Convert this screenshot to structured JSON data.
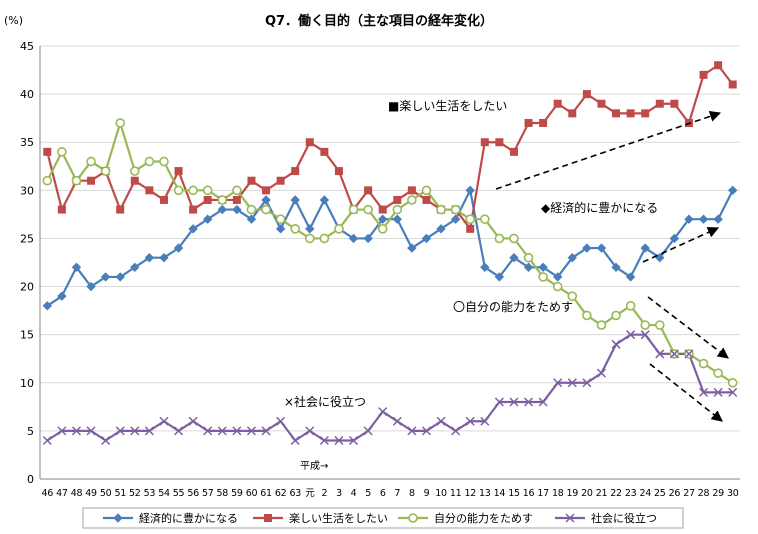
{
  "chart_data": {
    "type": "line",
    "title": "Q7．働く目的（主な項目の経年変化）",
    "ylabel": "(%)",
    "ylim": [
      0,
      45
    ],
    "yticks": [
      0,
      5,
      10,
      15,
      20,
      25,
      30,
      35,
      40,
      45
    ],
    "grid": true,
    "legend_position": "bottom",
    "categories": [
      "46",
      "47",
      "48",
      "49",
      "50",
      "51",
      "52",
      "53",
      "54",
      "55",
      "56",
      "57",
      "58",
      "59",
      "60",
      "61",
      "62",
      "63",
      "元",
      "2",
      "3",
      "4",
      "5",
      "6",
      "7",
      "8",
      "9",
      "10",
      "11",
      "12",
      "13",
      "14",
      "15",
      "16",
      "17",
      "18",
      "19",
      "20",
      "21",
      "22",
      "23",
      "24",
      "25",
      "26",
      "27",
      "28",
      "29",
      "30"
    ],
    "era_label": "平成→",
    "series": [
      {
        "name": "経済的に豊かになる",
        "color": "#4a7ebb",
        "marker": "diamond",
        "values": [
          18,
          19,
          22,
          20,
          21,
          21,
          22,
          23,
          23,
          24,
          26,
          27,
          28,
          28,
          27,
          29,
          26,
          29,
          26,
          29,
          26,
          25,
          25,
          27,
          27,
          24,
          25,
          26,
          27,
          30,
          22,
          21,
          23,
          22,
          22,
          21,
          23,
          24,
          24,
          22,
          21,
          24,
          23,
          25,
          27,
          27,
          27,
          30
        ]
      },
      {
        "name": "楽しい生活をしたい",
        "color": "#be4b48",
        "marker": "square",
        "values": [
          34,
          28,
          31,
          31,
          32,
          28,
          31,
          30,
          29,
          32,
          28,
          29,
          29,
          29,
          31,
          30,
          31,
          32,
          35,
          34,
          32,
          28,
          30,
          28,
          29,
          30,
          29,
          28,
          28,
          26,
          35,
          35,
          34,
          37,
          37,
          39,
          38,
          40,
          39,
          38,
          38,
          38,
          39,
          39,
          37,
          42,
          43,
          41
        ]
      },
      {
        "name": "自分の能力をためす",
        "color": "#98b954",
        "marker": "circle",
        "values": [
          31,
          34,
          31,
          33,
          32,
          37,
          32,
          33,
          33,
          30,
          30,
          30,
          29,
          30,
          28,
          28,
          27,
          26,
          25,
          25,
          26,
          28,
          28,
          26,
          28,
          29,
          30,
          28,
          28,
          27,
          27,
          25,
          25,
          23,
          21,
          20,
          19,
          17,
          16,
          17,
          18,
          16,
          16,
          13,
          13,
          12,
          11,
          10
        ]
      },
      {
        "name": "社会に役立つ",
        "color": "#7d5fa0",
        "marker": "cross",
        "values": [
          4,
          5,
          5,
          5,
          4,
          5,
          5,
          5,
          6,
          5,
          6,
          5,
          5,
          5,
          5,
          5,
          6,
          4,
          5,
          4,
          4,
          4,
          5,
          7,
          6,
          5,
          5,
          6,
          5,
          6,
          6,
          8,
          8,
          8,
          8,
          10,
          10,
          10,
          11,
          14,
          15,
          15,
          13,
          13,
          13,
          9,
          9,
          9
        ]
      }
    ],
    "annotations": [
      {
        "text": "■楽しい生活をしたい",
        "series": 1
      },
      {
        "text": "◆経済的に豊かになる",
        "series": 0
      },
      {
        "text": "〇自分の能力をためす",
        "series": 2
      },
      {
        "text": "×社会に役立つ",
        "series": 3
      }
    ]
  }
}
